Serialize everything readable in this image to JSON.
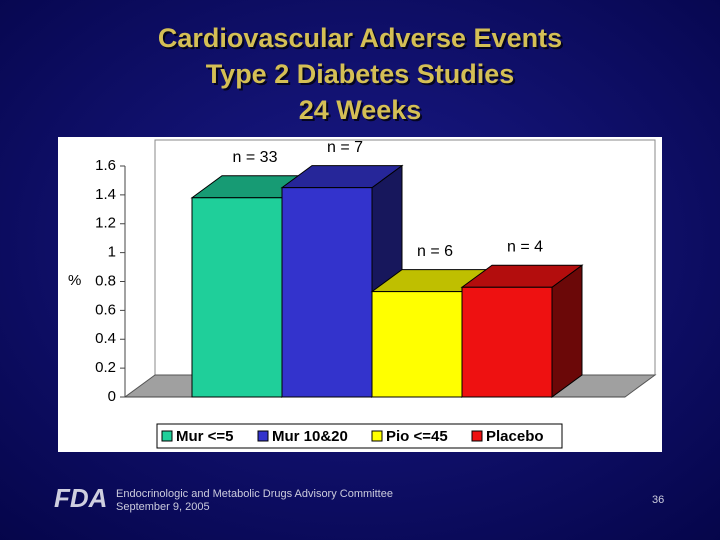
{
  "chart_data": {
    "type": "bar3d",
    "title_lines": [
      "Cardiovascular Adverse Events",
      "Type 2 Diabetes Studies",
      "24 Weeks"
    ],
    "y_label": "%",
    "categories": [
      null
    ],
    "series": [
      {
        "name": "Mur <=5",
        "color": "#1fcf9a",
        "values": [
          1.38
        ]
      },
      {
        "name": "Mur 10&20",
        "color": "#3333cc",
        "values": [
          1.45
        ]
      },
      {
        "name": "Pio <=45",
        "color": "#ffff00",
        "values": [
          0.73
        ]
      },
      {
        "name": "Placebo",
        "color": "#ee1111",
        "values": [
          0.76
        ]
      }
    ],
    "annotations": [
      "n = 33",
      "n = 7",
      "n = 6",
      "n = 4"
    ],
    "ylim": [
      0,
      1.6
    ],
    "yticks": [
      0,
      0.2,
      0.4,
      0.6,
      0.8,
      1,
      1.2,
      1.4,
      1.6
    ],
    "grid": false,
    "legend": "bottom"
  },
  "footer": {
    "logo": "FDA",
    "committee": "Endocrinologic and Metabolic Drugs Advisory Committee",
    "date": "September 9, 2005",
    "page": "36"
  }
}
